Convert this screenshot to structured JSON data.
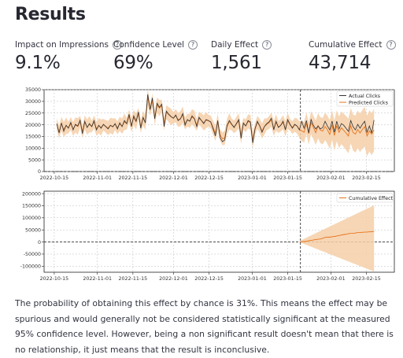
{
  "page": {
    "title": "Results"
  },
  "metrics": [
    {
      "label": "Impact on Impressions",
      "value": "9.1%"
    },
    {
      "label": "Confidence Level",
      "value": "69%"
    },
    {
      "label": "Daily Effect",
      "value": "1,561"
    },
    {
      "label": "Cumulative Effect",
      "value": "43,714"
    }
  ],
  "colors": {
    "actual": "#333333",
    "predicted": "#e8731a",
    "band": "#f5cfa8",
    "grid": "#bdbdbd"
  },
  "chart_data": [
    {
      "type": "line",
      "series": [
        {
          "name": "Actual Clicks",
          "values": [
            20500,
            16500,
            20800,
            17200,
            19800,
            18500,
            21000,
            17800,
            20200,
            19500,
            22000,
            16200,
            21500,
            18800,
            20500,
            19200,
            21800,
            17800,
            19800,
            18500,
            20200,
            19200,
            18200,
            19800,
            19100,
            20500,
            18200,
            20800,
            19200,
            21800,
            20500,
            24500,
            19200,
            23800,
            21500,
            25500,
            18500,
            23200,
            20800,
            33000,
            26500,
            31500,
            22500,
            29200,
            27500,
            28800,
            19200,
            25800,
            24500,
            23500,
            22800,
            24200,
            21800,
            22500,
            24800,
            19800,
            22200,
            21500,
            23800,
            22600,
            19200,
            23200,
            21800,
            20500,
            22200,
            21800,
            21200,
            18200,
            15200,
            21800,
            14500,
            12800,
            13500,
            19800,
            21800,
            20200,
            18800,
            20500,
            22200,
            14200,
            20800,
            19500,
            21800,
            21200,
            12200,
            18200,
            21500,
            19500,
            16800,
            19200,
            20500,
            21200,
            22800,
            17800,
            21500,
            18800,
            19800,
            21500,
            17800,
            22200,
            20200,
            18500,
            20200,
            19500,
            17800,
            21500,
            18500,
            21800,
            16500,
            22200,
            19800,
            18200,
            19500,
            18200,
            18800,
            21500,
            19500,
            17800,
            21600,
            16800,
            21500,
            18200,
            20500,
            19800,
            18500,
            17200,
            21800,
            19200,
            17800,
            20200,
            18500,
            20200,
            21500,
            16800,
            19500,
            16500,
            22000
          ]
        },
        {
          "name": "Predicted Clicks",
          "values": [
            20200,
            17000,
            20400,
            18000,
            19600,
            18800,
            20500,
            18200,
            19900,
            19300,
            21300,
            17100,
            21000,
            19000,
            20200,
            19300,
            21200,
            18300,
            19600,
            18800,
            20000,
            19300,
            18600,
            19700,
            19200,
            20300,
            18700,
            20400,
            19400,
            21300,
            20400,
            23800,
            19900,
            23100,
            21400,
            24800,
            19300,
            22800,
            21000,
            32000,
            26400,
            30500,
            22900,
            28500,
            27100,
            28200,
            20300,
            25400,
            24300,
            23400,
            22900,
            23900,
            22100,
            22600,
            24300,
            20500,
            22000,
            21600,
            23400,
            22500,
            19900,
            22800,
            21900,
            20800,
            22000,
            21700,
            21200,
            18800,
            16300,
            21200,
            15600,
            14000,
            14400,
            19400,
            21400,
            20100,
            19100,
            20300,
            21700,
            15300,
            20400,
            19600,
            21400,
            21000,
            13400,
            18300,
            21000,
            19500,
            17300,
            19200,
            20200,
            20900,
            22200,
            18400,
            21000,
            19000,
            19800,
            21100,
            18300,
            21700,
            20000,
            18800,
            20000,
            19500,
            17900,
            17400,
            16800,
            20600,
            16200,
            20900,
            18900,
            16600,
            19600,
            17700,
            17300,
            19300,
            17900,
            15900,
            19900,
            15400,
            19600,
            16800,
            18700,
            17600,
            16500,
            15200,
            19600,
            16700,
            16000,
            18000,
            16500,
            18000,
            19200,
            15200,
            17400,
            16000,
            17800
          ]
        }
      ],
      "legend": "top-right",
      "ylim": [
        0,
        35000
      ],
      "yticks": [
        "0",
        "5000",
        "10000",
        "15000",
        "20000",
        "25000",
        "30000",
        "35000"
      ],
      "xticks": [
        "2022-10-15",
        "2022-11-01",
        "2022-11-15",
        "2022-12-01",
        "2022-12-15",
        "2023-01-01",
        "2023-01-15",
        "2023-02-01",
        "2023-02-15"
      ],
      "intervention": "2023-01-20",
      "grid": true
    },
    {
      "type": "line",
      "series": [
        {
          "name": "Cumulative Effect",
          "values": [
            0,
            2300,
            1800,
            4100,
            6300,
            7800,
            9600,
            10900,
            12400,
            15100,
            18800,
            20400,
            19800,
            21900,
            22900,
            25300,
            27100,
            29500,
            31000,
            32300,
            35300,
            35700,
            36400,
            38600,
            38800,
            39900,
            40700,
            41100,
            41800,
            42500,
            43714
          ]
        }
      ],
      "legend": "top-right",
      "ylim": [
        -125000,
        210000
      ],
      "yticks": [
        "-100000",
        "-50000",
        "0",
        "50000",
        "100000",
        "150000",
        "200000"
      ],
      "xticks": [
        "2022-10-15",
        "2022-11-01",
        "2022-11-15",
        "2022-12-01",
        "2022-12-15",
        "2023-01-01",
        "2023-01-15",
        "2023-02-01",
        "2023-02-15"
      ],
      "intervention": "2023-01-20",
      "grid": true
    }
  ],
  "description": "The probability of obtaining this effect by chance is 31%. This means the effect may be spurious and would generally not be considered statistically significant at the measured 95% confidence level. However, being a non significant result doesn't mean that there is no relationship, it just means that the result is inconclusive."
}
